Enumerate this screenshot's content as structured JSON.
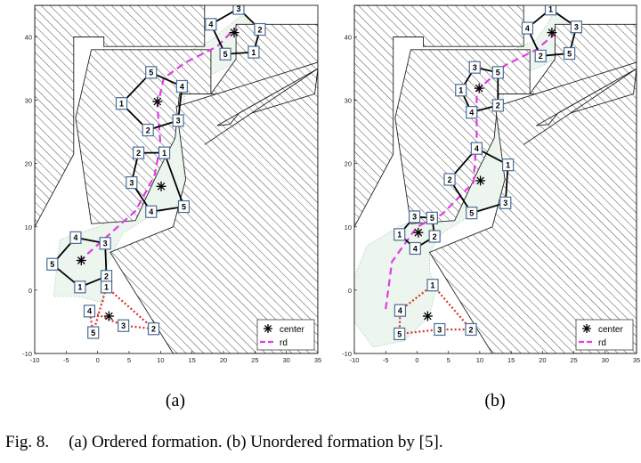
{
  "chart_data": [
    {
      "panel": "(a)",
      "type": "scatter",
      "xlim": [
        -10,
        35
      ],
      "ylim": [
        -10,
        45
      ],
      "xticks": [
        -10,
        -5,
        0,
        5,
        10,
        15,
        20,
        25,
        30,
        35
      ],
      "yticks": [
        -10,
        0,
        10,
        20,
        30,
        40
      ],
      "grid": false,
      "legend_position": "bottom-right",
      "legend": [
        "center",
        "rd"
      ],
      "obstacles": [
        [
          [
            -10,
            45
          ],
          [
            17,
            45
          ],
          [
            17,
            38.5
          ],
          [
            1,
            38.5
          ],
          [
            1,
            40
          ],
          [
            -3.8,
            40
          ],
          [
            -3.8,
            21.5
          ],
          [
            -10,
            10
          ]
        ],
        [
          [
            -1,
            38
          ],
          [
            18,
            38
          ],
          [
            18,
            31
          ],
          [
            13,
            31
          ],
          [
            12.3,
            24
          ],
          [
            10,
            19.5
          ],
          [
            6,
            11
          ],
          [
            -1,
            10.5
          ],
          [
            -3.5,
            27.2
          ]
        ],
        [
          [
            22,
            42
          ],
          [
            35,
            42
          ],
          [
            35,
            35
          ],
          [
            34.5,
            35
          ],
          [
            28.5,
            30.5
          ],
          [
            18,
            31
          ],
          [
            22,
            36.5
          ]
        ],
        [
          [
            35,
            36
          ],
          [
            35,
            -10
          ],
          [
            12,
            -10
          ],
          [
            2,
            6
          ],
          [
            12,
            10
          ],
          [
            14,
            17.5
          ],
          [
            12.5,
            29
          ]
        ],
        [
          [
            35,
            35
          ],
          [
            22.5,
            28
          ],
          [
            21,
            26.2
          ],
          [
            19,
            26
          ]
        ],
        [
          [
            17,
            23
          ],
          [
            24.5,
            28
          ],
          [
            34.5,
            31
          ],
          [
            35,
            35
          ]
        ]
      ],
      "rd": [
        [
          -3,
          4.5
        ],
        [
          6,
          12.5
        ],
        [
          9,
          18
        ],
        [
          10,
          23
        ],
        [
          9.5,
          29
        ],
        [
          10.5,
          33.5
        ],
        [
          14,
          36
        ],
        [
          19,
          38.5
        ],
        [
          22,
          41.5
        ]
      ],
      "formations": [
        {
          "style": "solid",
          "center": [
            21.7,
            40.7
          ],
          "nodes": [
            {
              "id": "1",
              "x": 24.8,
              "y": 37.6
            },
            {
              "id": "2",
              "x": 25.8,
              "y": 41.2
            },
            {
              "id": "3",
              "x": 22.4,
              "y": 44.5
            },
            {
              "id": "4",
              "x": 18,
              "y": 42
            },
            {
              "id": "5",
              "x": 20.3,
              "y": 37.3
            }
          ]
        },
        {
          "style": "solid",
          "center": [
            9.5,
            29.8
          ],
          "nodes": [
            {
              "id": "1",
              "x": 3.8,
              "y": 29.5
            },
            {
              "id": "2",
              "x": 8,
              "y": 25.3
            },
            {
              "id": "3",
              "x": 12.8,
              "y": 26.8
            },
            {
              "id": "4",
              "x": 13.4,
              "y": 32.2
            },
            {
              "id": "5",
              "x": 8.5,
              "y": 34.4
            }
          ]
        },
        {
          "style": "solid",
          "center": [
            10.1,
            16.4
          ],
          "nodes": [
            {
              "id": "1",
              "x": 10.6,
              "y": 21.7
            },
            {
              "id": "2",
              "x": 6.5,
              "y": 21.7
            },
            {
              "id": "3",
              "x": 5.4,
              "y": 17
            },
            {
              "id": "4",
              "x": 8.5,
              "y": 12.4
            },
            {
              "id": "5",
              "x": 13.7,
              "y": 13.2
            }
          ]
        },
        {
          "style": "solid",
          "center": [
            -2.6,
            4.7
          ],
          "nodes": [
            {
              "id": "1",
              "x": -2.8,
              "y": 0.5
            },
            {
              "id": "2",
              "x": 1.4,
              "y": 2.2
            },
            {
              "id": "3",
              "x": 1.2,
              "y": 7.4
            },
            {
              "id": "4",
              "x": -3.5,
              "y": 8.3
            },
            {
              "id": "5",
              "x": -7.2,
              "y": 4.1
            }
          ]
        },
        {
          "style": "dotted",
          "center": [
            1.8,
            -4.1
          ],
          "nodes": [
            {
              "id": "1",
              "x": 1.4,
              "y": 0.5
            },
            {
              "id": "2",
              "x": 8.9,
              "y": -6.1
            },
            {
              "id": "3",
              "x": 4.1,
              "y": -5.6
            },
            {
              "id": "4",
              "x": -1.3,
              "y": -3.3
            },
            {
              "id": "5",
              "x": -0.7,
              "y": -6.7
            }
          ]
        }
      ],
      "swept_regions": [
        [
          [
            -6.5,
            3.5
          ],
          [
            -6,
            8
          ],
          [
            0,
            10
          ],
          [
            4,
            12
          ],
          [
            5,
            15
          ],
          [
            7,
            21
          ],
          [
            5,
            26
          ],
          [
            5,
            32
          ],
          [
            9,
            35
          ],
          [
            14,
            37.5
          ],
          [
            18,
            39.5
          ],
          [
            23,
            43.5
          ],
          [
            26,
            40.5
          ],
          [
            23,
            36.5
          ],
          [
            19,
            34.5
          ],
          [
            14,
            32
          ],
          [
            13.4,
            26
          ],
          [
            13.5,
            22
          ],
          [
            14,
            14
          ],
          [
            8,
            11.5
          ],
          [
            4,
            9
          ],
          [
            1,
            3
          ],
          [
            1,
            -2
          ],
          [
            -3,
            -1
          ],
          [
            -7,
            -1
          ]
        ]
      ]
    },
    {
      "panel": "(b)",
      "type": "scatter",
      "xlim": [
        -10,
        35
      ],
      "ylim": [
        -10,
        45
      ],
      "xticks": [
        -10,
        -5,
        0,
        5,
        10,
        15,
        20,
        25,
        30,
        35
      ],
      "yticks": [
        -10,
        0,
        10,
        20,
        30,
        40
      ],
      "grid": false,
      "legend_position": "bottom-right",
      "legend": [
        "center",
        "rd"
      ],
      "obstacles": [
        [
          [
            -10,
            45
          ],
          [
            17,
            45
          ],
          [
            17,
            38.5
          ],
          [
            1,
            38.5
          ],
          [
            1,
            40
          ],
          [
            -3.8,
            40
          ],
          [
            -3.8,
            21.5
          ],
          [
            -10,
            10
          ]
        ],
        [
          [
            -1,
            38
          ],
          [
            18,
            38
          ],
          [
            18,
            31
          ],
          [
            13,
            31
          ],
          [
            12.3,
            24
          ],
          [
            10,
            19.5
          ],
          [
            6,
            11
          ],
          [
            -1,
            10.5
          ],
          [
            -3.5,
            27.2
          ]
        ],
        [
          [
            22,
            42
          ],
          [
            35,
            42
          ],
          [
            35,
            35
          ],
          [
            34.5,
            35
          ],
          [
            28.5,
            30.5
          ],
          [
            18,
            31
          ],
          [
            22,
            36.5
          ]
        ],
        [
          [
            35,
            36
          ],
          [
            35,
            -10
          ],
          [
            12,
            -10
          ],
          [
            2,
            6
          ],
          [
            12,
            10
          ],
          [
            14,
            17.5
          ],
          [
            12.5,
            29
          ]
        ],
        [
          [
            35,
            35
          ],
          [
            22.5,
            28
          ],
          [
            21,
            26.2
          ],
          [
            19,
            26
          ]
        ],
        [
          [
            17,
            23
          ],
          [
            24.5,
            28
          ],
          [
            34.5,
            31
          ],
          [
            35,
            35
          ]
        ]
      ],
      "rd": [
        [
          -5,
          -3
        ],
        [
          -4,
          4.5
        ],
        [
          0,
          10
        ],
        [
          4,
          12
        ],
        [
          9,
          17
        ],
        [
          9.5,
          24
        ],
        [
          9.5,
          31.5
        ],
        [
          14,
          35.5
        ],
        [
          19,
          38
        ],
        [
          22,
          40.5
        ]
      ],
      "formations": [
        {
          "style": "solid",
          "center": [
            21.5,
            40.7
          ],
          "nodes": [
            {
              "id": "1",
              "x": 21.3,
              "y": 44.4
            },
            {
              "id": "3",
              "x": 25.4,
              "y": 41.6
            },
            {
              "id": "5",
              "x": 24.3,
              "y": 37.4
            },
            {
              "id": "2",
              "x": 19.7,
              "y": 37
            },
            {
              "id": "4",
              "x": 17.6,
              "y": 41.4
            }
          ]
        },
        {
          "style": "solid",
          "center": [
            9.9,
            31.9
          ],
          "nodes": [
            {
              "id": "3",
              "x": 9.2,
              "y": 35.2
            },
            {
              "id": "5",
              "x": 12.9,
              "y": 34.4
            },
            {
              "id": "2",
              "x": 12.9,
              "y": 29.2
            },
            {
              "id": "4",
              "x": 8.7,
              "y": 28.1
            },
            {
              "id": "1",
              "x": 7,
              "y": 31.6
            }
          ]
        },
        {
          "style": "solid",
          "center": [
            10.1,
            17.3
          ],
          "nodes": [
            {
              "id": "4",
              "x": 9.5,
              "y": 22.4
            },
            {
              "id": "1",
              "x": 14.5,
              "y": 19.8
            },
            {
              "id": "3",
              "x": 14.1,
              "y": 13.8
            },
            {
              "id": "5",
              "x": 8.7,
              "y": 12.2
            },
            {
              "id": "2",
              "x": 5.2,
              "y": 17.5
            }
          ]
        },
        {
          "style": "solid",
          "center": [
            0.2,
            9.1
          ],
          "nodes": [
            {
              "id": "3",
              "x": -0.4,
              "y": 11.6
            },
            {
              "id": "5",
              "x": 2.4,
              "y": 11.4
            },
            {
              "id": "2",
              "x": 2.8,
              "y": 8.5
            },
            {
              "id": "4",
              "x": -0.3,
              "y": 6.6
            },
            {
              "id": "1",
              "x": -2.8,
              "y": 8.8
            }
          ]
        },
        {
          "style": "dotted",
          "center": [
            1.7,
            -4.1
          ],
          "nodes": [
            {
              "id": "1",
              "x": 2.5,
              "y": 0.8
            },
            {
              "id": "4",
              "x": -2.7,
              "y": -3.2
            },
            {
              "id": "5",
              "x": -2.8,
              "y": -6.9
            },
            {
              "id": "3",
              "x": 3.6,
              "y": -6.2
            },
            {
              "id": "2",
              "x": 8.6,
              "y": -6.2
            }
          ]
        }
      ],
      "swept_regions": [
        [
          [
            -10,
            -5
          ],
          [
            -10,
            2
          ],
          [
            -8,
            7
          ],
          [
            -3,
            10
          ],
          [
            2,
            12
          ],
          [
            4,
            12.5
          ],
          [
            5,
            15
          ],
          [
            5,
            30
          ],
          [
            6,
            34
          ],
          [
            9,
            36
          ],
          [
            14,
            37.5
          ],
          [
            19,
            39.5
          ],
          [
            22,
            44
          ],
          [
            26,
            41
          ],
          [
            23,
            37
          ],
          [
            19,
            35
          ],
          [
            14,
            33.5
          ],
          [
            13.5,
            28
          ],
          [
            14,
            14
          ],
          [
            8,
            11.5
          ],
          [
            4,
            9
          ],
          [
            2,
            6
          ],
          [
            2,
            3
          ],
          [
            3,
            0
          ],
          [
            2,
            -4
          ],
          [
            -2,
            -8
          ],
          [
            -7,
            -9
          ]
        ]
      ]
    }
  ],
  "panel_labels": [
    "(a)",
    "(b)"
  ],
  "legend_entries": [
    "center",
    "rd"
  ],
  "caption": {
    "label": "Fig. 8.",
    "text": "(a) Ordered formation. (b) Unordered formation by [5]."
  }
}
